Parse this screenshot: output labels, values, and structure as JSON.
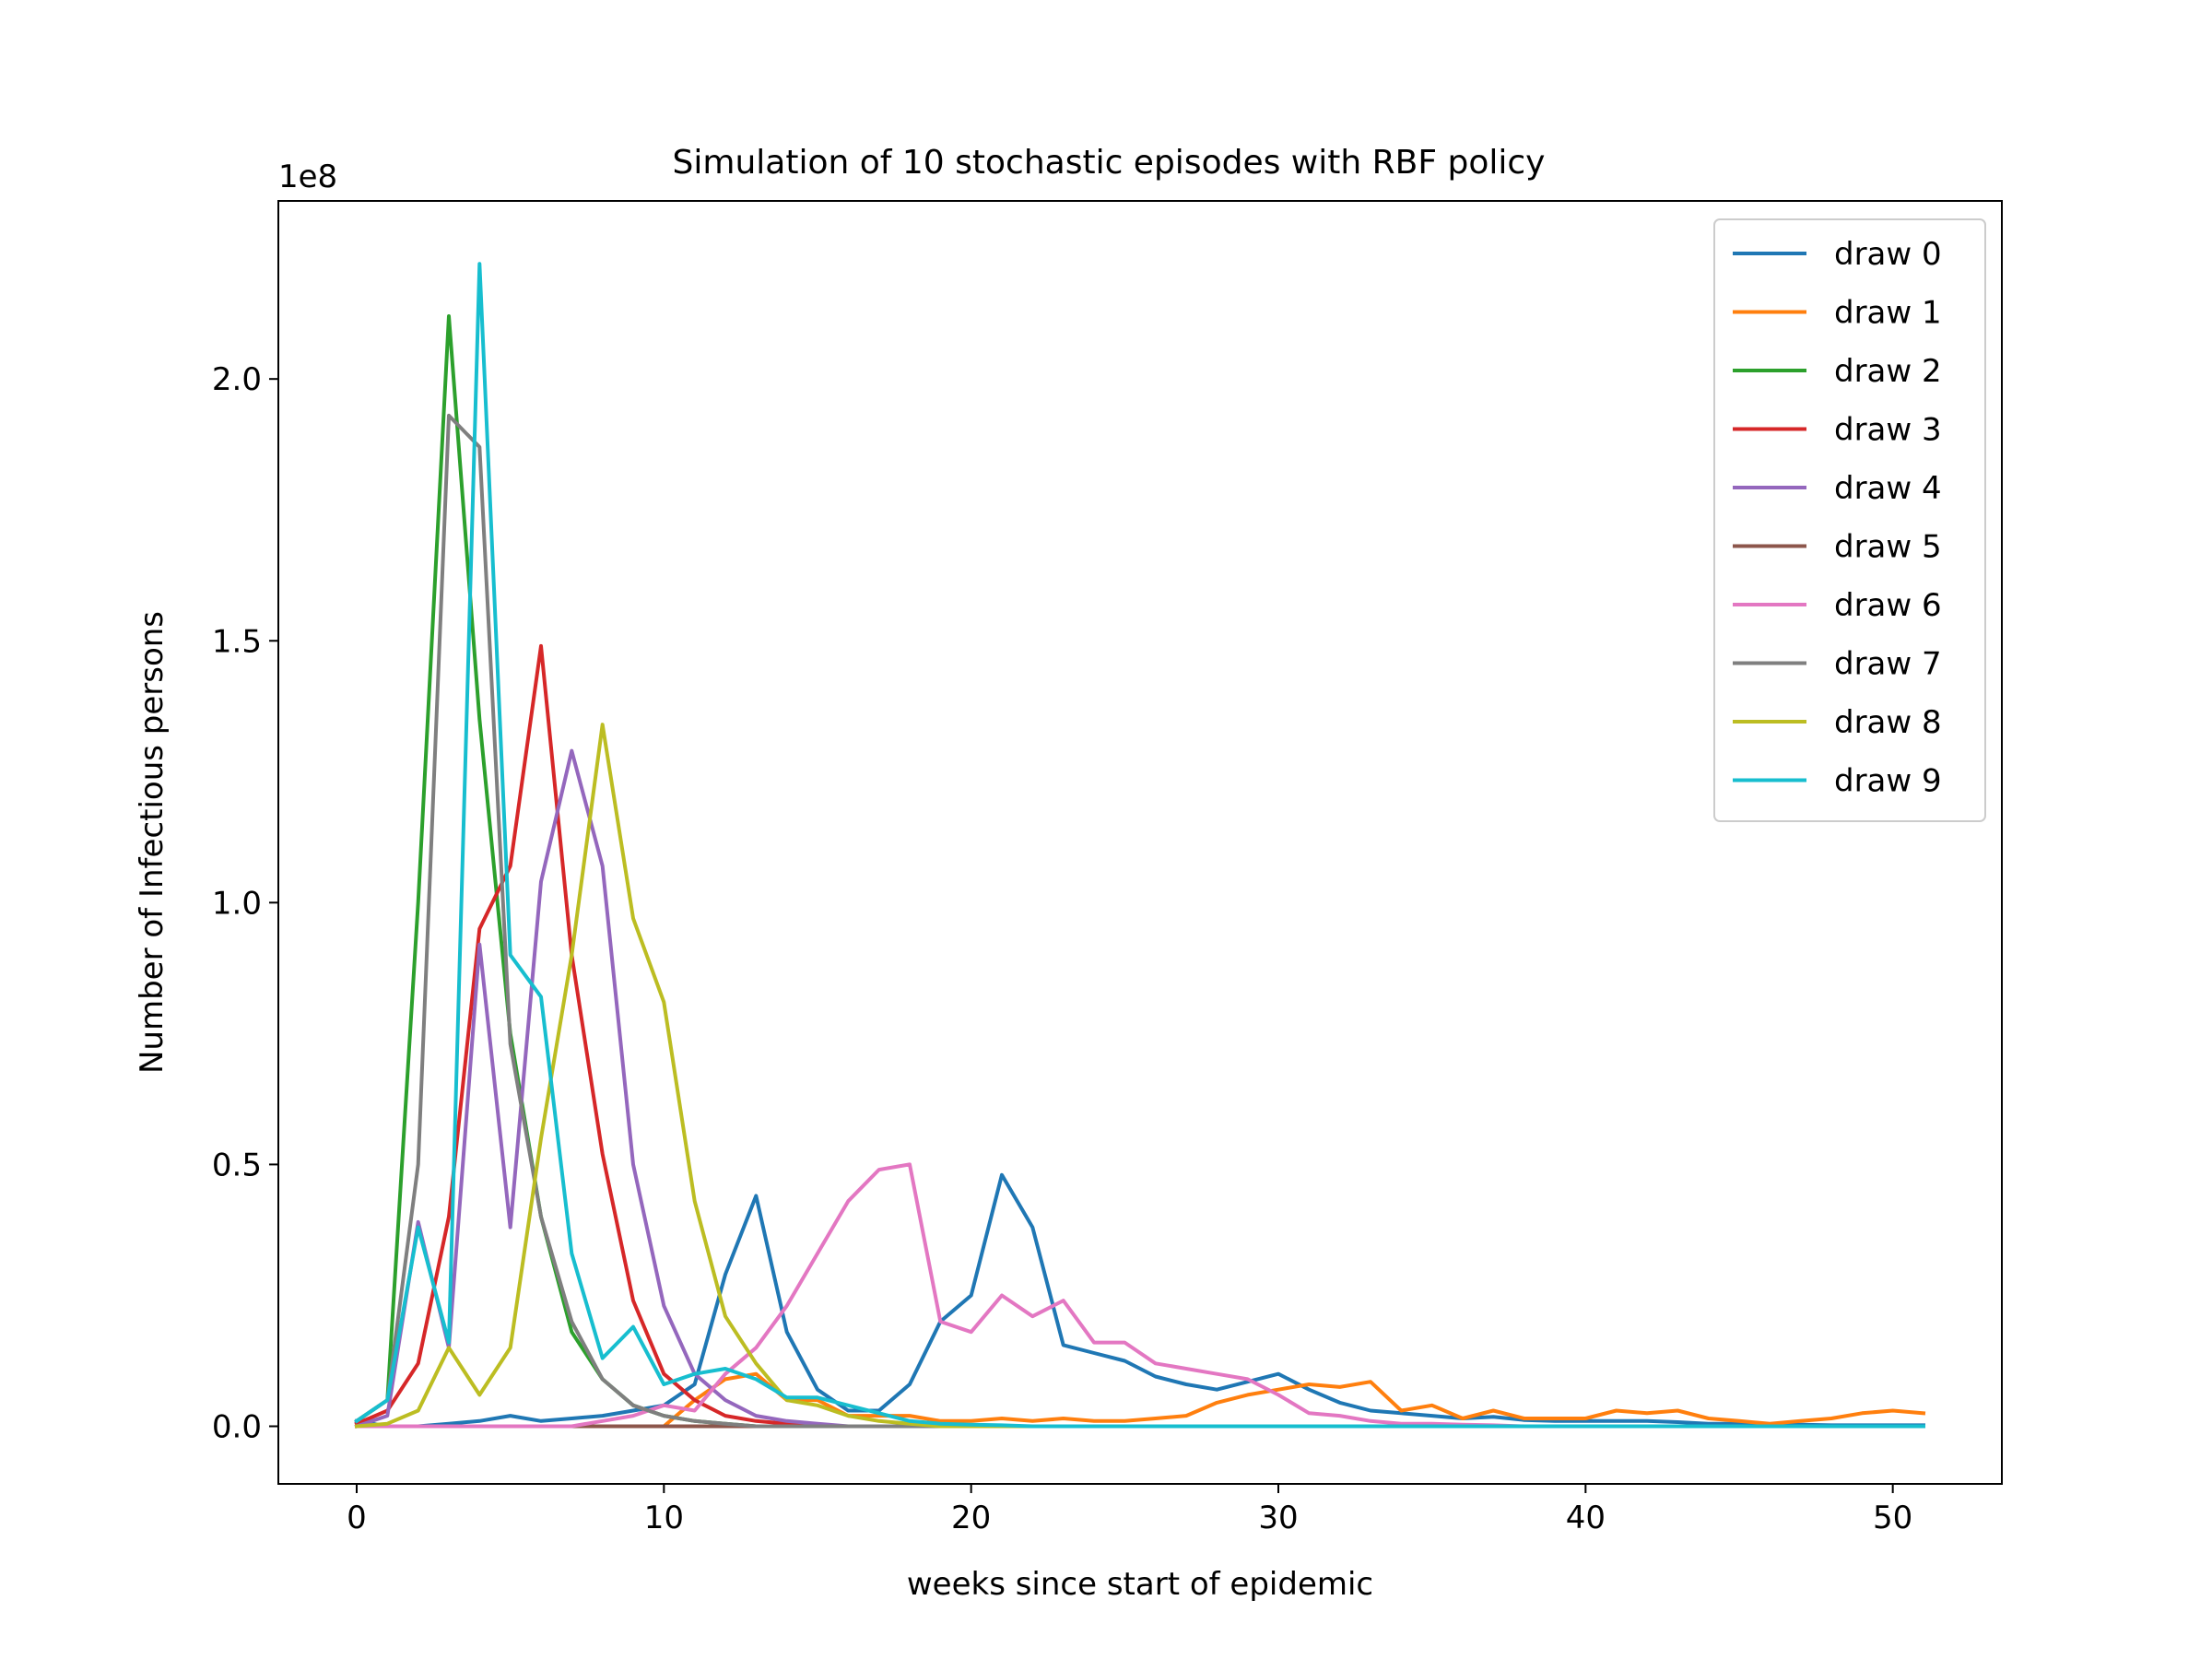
{
  "chart_data": {
    "type": "line",
    "title": "Simulation of 10 stochastic episodes with RBF policy",
    "xlabel": "weeks since start of epidemic",
    "ylabel": "Number of Infectious persons",
    "y_offset_label": "1e8",
    "xlim": [
      -2.55,
      53.55
    ],
    "ylim": [
      -0.11,
      2.34
    ],
    "x_ticks": [
      0,
      10,
      20,
      30,
      40,
      50
    ],
    "x_tick_labels": [
      "0",
      "10",
      "20",
      "30",
      "40",
      "50"
    ],
    "y_ticks": [
      0.0,
      0.5,
      1.0,
      1.5,
      2.0
    ],
    "y_tick_labels": [
      "0.0",
      "0.5",
      "1.0",
      "1.5",
      "2.0"
    ],
    "grid": false,
    "legend_position": "top-right",
    "x": [
      0,
      1,
      2,
      3,
      4,
      5,
      6,
      7,
      8,
      9,
      10,
      11,
      12,
      13,
      14,
      15,
      16,
      17,
      18,
      19,
      20,
      21,
      22,
      23,
      24,
      25,
      26,
      27,
      28,
      29,
      30,
      31,
      32,
      33,
      34,
      35,
      36,
      37,
      38,
      39,
      40,
      41,
      42,
      43,
      44,
      45,
      46,
      47,
      48,
      49,
      50,
      51
    ],
    "series": [
      {
        "name": "draw 0",
        "color": "#1f77b4",
        "values": [
          0.01,
          0.0,
          0.0,
          0.005,
          0.01,
          0.02,
          0.01,
          0.015,
          0.02,
          0.03,
          0.04,
          0.08,
          0.29,
          0.44,
          0.18,
          0.07,
          0.03,
          0.03,
          0.08,
          0.2,
          0.25,
          0.48,
          0.38,
          0.155,
          0.14,
          0.125,
          0.095,
          0.08,
          0.07,
          0.085,
          0.1,
          0.07,
          0.045,
          0.03,
          0.025,
          0.02,
          0.015,
          0.018,
          0.012,
          0.01,
          0.01,
          0.01,
          0.01,
          0.008,
          0.005,
          0.005,
          0.003,
          0.003,
          0.002,
          0.002,
          0.002,
          0.002
        ]
      },
      {
        "name": "draw 1",
        "color": "#ff7f0e",
        "values": [
          0.0,
          0.0,
          0.0,
          0.0,
          0.0,
          0.0,
          0.0,
          0.0,
          0.0,
          0.0,
          0.0,
          0.05,
          0.09,
          0.1,
          0.05,
          0.05,
          0.02,
          0.02,
          0.02,
          0.01,
          0.01,
          0.015,
          0.01,
          0.015,
          0.01,
          0.01,
          0.015,
          0.02,
          0.045,
          0.06,
          0.07,
          0.08,
          0.075,
          0.085,
          0.03,
          0.04,
          0.015,
          0.03,
          0.015,
          0.015,
          0.015,
          0.03,
          0.025,
          0.03,
          0.015,
          0.01,
          0.005,
          0.01,
          0.015,
          0.025,
          0.03,
          0.025
        ]
      },
      {
        "name": "draw 2",
        "color": "#2ca02c",
        "values": [
          0.01,
          0.05,
          1.0,
          2.12,
          1.35,
          0.75,
          0.4,
          0.18,
          0.09,
          0.04,
          0.02,
          0.01,
          0.005,
          0.0,
          0.0,
          0.0,
          0.0,
          0.0,
          0.0,
          0.0,
          0.0,
          0.0,
          0.0,
          0.0,
          0.0,
          0.0,
          0.0,
          0.0,
          0.0,
          0.0,
          0.0,
          0.0,
          0.0,
          0.0,
          0.0,
          0.0,
          0.0,
          0.0,
          0.0,
          0.0,
          0.0,
          0.0,
          0.0,
          0.0,
          0.0,
          0.0,
          0.0,
          0.0,
          0.0,
          0.0,
          0.0,
          0.0
        ]
      },
      {
        "name": "draw 3",
        "color": "#d62728",
        "values": [
          0.005,
          0.03,
          0.12,
          0.4,
          0.95,
          1.07,
          1.49,
          0.9,
          0.52,
          0.24,
          0.1,
          0.05,
          0.02,
          0.01,
          0.005,
          0.0,
          0.0,
          0.0,
          0.0,
          0.0,
          0.0,
          0.0,
          0.0,
          0.0,
          0.0,
          0.0,
          0.0,
          0.0,
          0.0,
          0.0,
          0.0,
          0.0,
          0.0,
          0.0,
          0.0,
          0.0,
          0.0,
          0.0,
          0.0,
          0.0,
          0.0,
          0.0,
          0.0,
          0.0,
          0.0,
          0.0,
          0.0,
          0.0,
          0.0,
          0.0,
          0.0,
          0.0
        ]
      },
      {
        "name": "draw 4",
        "color": "#9467bd",
        "values": [
          0.0,
          0.02,
          0.39,
          0.15,
          0.92,
          0.38,
          1.04,
          1.29,
          1.07,
          0.5,
          0.23,
          0.1,
          0.05,
          0.02,
          0.01,
          0.005,
          0.0,
          0.0,
          0.0,
          0.0,
          0.0,
          0.0,
          0.0,
          0.0,
          0.0,
          0.0,
          0.0,
          0.0,
          0.0,
          0.0,
          0.0,
          0.0,
          0.0,
          0.0,
          0.0,
          0.0,
          0.0,
          0.0,
          0.0,
          0.0,
          0.0,
          0.0,
          0.0,
          0.0,
          0.0,
          0.0,
          0.0,
          0.0,
          0.0,
          0.0,
          0.0,
          0.0
        ]
      },
      {
        "name": "draw 5",
        "color": "#8c564b",
        "values": [
          0.0,
          0.0,
          0.0,
          0.0,
          0.0,
          0.0,
          0.0,
          0.0,
          0.0,
          0.0,
          0.0,
          0.0,
          0.0,
          0.0,
          0.0,
          0.0,
          0.0,
          0.0,
          0.0,
          0.0,
          0.0,
          0.0,
          0.0,
          0.0,
          0.0,
          0.0,
          0.0,
          0.0,
          0.0,
          0.0,
          0.0,
          0.0,
          0.0,
          0.0,
          0.0,
          0.0,
          0.0,
          0.0,
          0.0,
          0.0,
          0.0,
          0.0,
          0.0,
          0.0,
          0.0,
          0.0,
          0.0,
          0.0,
          0.0,
          0.0,
          0.0,
          0.0
        ]
      },
      {
        "name": "draw 6",
        "color": "#e377c2",
        "values": [
          0.0,
          0.0,
          0.0,
          0.0,
          0.0,
          0.0,
          0.0,
          0.0,
          0.01,
          0.02,
          0.04,
          0.03,
          0.1,
          0.15,
          0.23,
          0.33,
          0.43,
          0.49,
          0.5,
          0.2,
          0.18,
          0.25,
          0.21,
          0.24,
          0.16,
          0.16,
          0.12,
          0.11,
          0.1,
          0.09,
          0.06,
          0.025,
          0.02,
          0.01,
          0.005,
          0.005,
          0.003,
          0.002,
          0.0,
          0.0,
          0.0,
          0.0,
          0.0,
          0.0,
          0.0,
          0.0,
          0.0,
          0.0,
          0.0,
          0.0,
          0.0,
          0.0
        ]
      },
      {
        "name": "draw 7",
        "color": "#7f7f7f",
        "values": [
          0.01,
          0.05,
          0.5,
          1.93,
          1.87,
          0.73,
          0.4,
          0.2,
          0.09,
          0.04,
          0.02,
          0.01,
          0.005,
          0.0,
          0.0,
          0.0,
          0.0,
          0.0,
          0.0,
          0.0,
          0.0,
          0.0,
          0.0,
          0.0,
          0.0,
          0.0,
          0.0,
          0.0,
          0.0,
          0.0,
          0.0,
          0.0,
          0.0,
          0.0,
          0.0,
          0.0,
          0.0,
          0.0,
          0.0,
          0.0,
          0.0,
          0.0,
          0.0,
          0.0,
          0.0,
          0.0,
          0.0,
          0.0,
          0.0,
          0.0,
          0.0,
          0.0
        ]
      },
      {
        "name": "draw 8",
        "color": "#bcbd22",
        "values": [
          0.0,
          0.005,
          0.03,
          0.15,
          0.06,
          0.15,
          0.55,
          0.9,
          1.34,
          0.97,
          0.81,
          0.43,
          0.21,
          0.12,
          0.05,
          0.04,
          0.02,
          0.01,
          0.005,
          0.0,
          0.0,
          0.0,
          0.0,
          0.0,
          0.0,
          0.0,
          0.0,
          0.0,
          0.0,
          0.0,
          0.0,
          0.0,
          0.0,
          0.0,
          0.0,
          0.0,
          0.0,
          0.0,
          0.0,
          0.0,
          0.0,
          0.0,
          0.0,
          0.0,
          0.0,
          0.0,
          0.0,
          0.0,
          0.0,
          0.0,
          0.0,
          0.0
        ]
      },
      {
        "name": "draw 9",
        "color": "#17becf",
        "values": [
          0.01,
          0.05,
          0.38,
          0.16,
          2.22,
          0.9,
          0.82,
          0.33,
          0.13,
          0.19,
          0.08,
          0.1,
          0.11,
          0.09,
          0.055,
          0.055,
          0.04,
          0.025,
          0.01,
          0.005,
          0.003,
          0.002,
          0.0,
          0.0,
          0.0,
          0.0,
          0.0,
          0.0,
          0.0,
          0.0,
          0.0,
          0.0,
          0.0,
          0.0,
          0.0,
          0.0,
          0.0,
          0.0,
          0.0,
          0.0,
          0.0,
          0.0,
          0.0,
          0.0,
          0.0,
          0.0,
          0.0,
          0.0,
          0.0,
          0.0,
          0.0,
          0.0
        ]
      }
    ]
  }
}
